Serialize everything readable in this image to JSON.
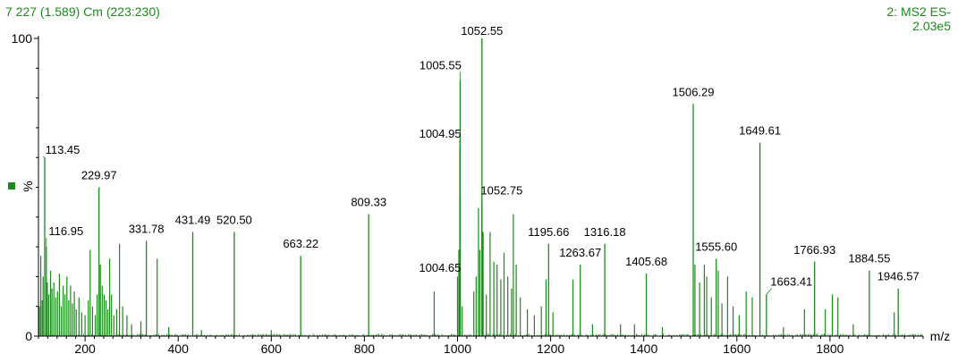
{
  "header": {
    "left": "7 227 (1.589) Cm (223:230)",
    "right_line1": "2: MS2 ES-",
    "right_line2": "2.03e5"
  },
  "colors": {
    "spectrum": "#1a8a1a",
    "axis": "#000000",
    "labels": "#000000"
  },
  "chart_data": {
    "type": "bar",
    "title": "7 227 (1.589) Cm (223:230)",
    "xlabel": "m/z",
    "ylabel": "%",
    "xlim": [
      100,
      2000
    ],
    "ylim": [
      0,
      100
    ],
    "xticks": [
      200,
      400,
      600,
      800,
      1000,
      1200,
      1400,
      1600,
      1800
    ],
    "yticks": [
      0,
      100
    ],
    "grid": false,
    "labeled_peaks": [
      {
        "mz": 113.45,
        "label": "113.45",
        "intensity": 60
      },
      {
        "mz": 116.95,
        "label": "116.95",
        "intensity": 30
      },
      {
        "mz": 229.97,
        "label": "229.97",
        "intensity": 50
      },
      {
        "mz": 331.78,
        "label": "331.78",
        "intensity": 32
      },
      {
        "mz": 431.49,
        "label": "431.49",
        "intensity": 35
      },
      {
        "mz": 520.5,
        "label": "520.50",
        "intensity": 35
      },
      {
        "mz": 663.22,
        "label": "663.22",
        "intensity": 27
      },
      {
        "mz": 809.33,
        "label": "809.33",
        "intensity": 41
      },
      {
        "mz": 1004.65,
        "label": "1004.65",
        "intensity": 18
      },
      {
        "mz": 1004.95,
        "label": "1004.95",
        "intensity": 63
      },
      {
        "mz": 1005.55,
        "label": "1005.55",
        "intensity": 86
      },
      {
        "mz": 1052.55,
        "label": "1052.55",
        "intensity": 100
      },
      {
        "mz": 1052.75,
        "label": "1052.75",
        "intensity": 44
      },
      {
        "mz": 1195.66,
        "label": "1195.66",
        "intensity": 31
      },
      {
        "mz": 1263.67,
        "label": "1263.67",
        "intensity": 24
      },
      {
        "mz": 1316.18,
        "label": "1316.18",
        "intensity": 31
      },
      {
        "mz": 1405.68,
        "label": "1405.68",
        "intensity": 21
      },
      {
        "mz": 1506.29,
        "label": "1506.29",
        "intensity": 78
      },
      {
        "mz": 1555.6,
        "label": "1555.60",
        "intensity": 26
      },
      {
        "mz": 1649.61,
        "label": "1649.61",
        "intensity": 65
      },
      {
        "mz": 1663.41,
        "label": "1663.41",
        "intensity": 14
      },
      {
        "mz": 1766.93,
        "label": "1766.93",
        "intensity": 25
      },
      {
        "mz": 1884.55,
        "label": "1884.55",
        "intensity": 22
      },
      {
        "mz": 1946.57,
        "label": "1946.57",
        "intensity": 16
      }
    ],
    "other_peaks": [
      {
        "mz": 102,
        "intensity": 10
      },
      {
        "mz": 105,
        "intensity": 27
      },
      {
        "mz": 108,
        "intensity": 12
      },
      {
        "mz": 110,
        "intensity": 20
      },
      {
        "mz": 119,
        "intensity": 18
      },
      {
        "mz": 122,
        "intensity": 14
      },
      {
        "mz": 126,
        "intensity": 22
      },
      {
        "mz": 129,
        "intensity": 16
      },
      {
        "mz": 133,
        "intensity": 18
      },
      {
        "mz": 137,
        "intensity": 13
      },
      {
        "mz": 141,
        "intensity": 15
      },
      {
        "mz": 145,
        "intensity": 21
      },
      {
        "mz": 149,
        "intensity": 10
      },
      {
        "mz": 153,
        "intensity": 17
      },
      {
        "mz": 157,
        "intensity": 14
      },
      {
        "mz": 161,
        "intensity": 20
      },
      {
        "mz": 165,
        "intensity": 12
      },
      {
        "mz": 169,
        "intensity": 17
      },
      {
        "mz": 173,
        "intensity": 11
      },
      {
        "mz": 177,
        "intensity": 15
      },
      {
        "mz": 181,
        "intensity": 9
      },
      {
        "mz": 187,
        "intensity": 13
      },
      {
        "mz": 193,
        "intensity": 8
      },
      {
        "mz": 200,
        "intensity": 7
      },
      {
        "mz": 207,
        "intensity": 12
      },
      {
        "mz": 211,
        "intensity": 29
      },
      {
        "mz": 216,
        "intensity": 10
      },
      {
        "mz": 222,
        "intensity": 7
      },
      {
        "mz": 226,
        "intensity": 14
      },
      {
        "mz": 233,
        "intensity": 24
      },
      {
        "mz": 237,
        "intensity": 17
      },
      {
        "mz": 241,
        "intensity": 14
      },
      {
        "mz": 245,
        "intensity": 12
      },
      {
        "mz": 249,
        "intensity": 9
      },
      {
        "mz": 253,
        "intensity": 26
      },
      {
        "mz": 257,
        "intensity": 14
      },
      {
        "mz": 262,
        "intensity": 7
      },
      {
        "mz": 268,
        "intensity": 9
      },
      {
        "mz": 274,
        "intensity": 31
      },
      {
        "mz": 281,
        "intensity": 10
      },
      {
        "mz": 290,
        "intensity": 7
      },
      {
        "mz": 300,
        "intensity": 4
      },
      {
        "mz": 320,
        "intensity": 5
      },
      {
        "mz": 355,
        "intensity": 26
      },
      {
        "mz": 380,
        "intensity": 3
      },
      {
        "mz": 450,
        "intensity": 2
      },
      {
        "mz": 600,
        "intensity": 2
      },
      {
        "mz": 950,
        "intensity": 15
      },
      {
        "mz": 1000,
        "intensity": 20
      },
      {
        "mz": 1003,
        "intensity": 29
      },
      {
        "mz": 1006,
        "intensity": 46
      },
      {
        "mz": 1010,
        "intensity": 10
      },
      {
        "mz": 1035,
        "intensity": 15
      },
      {
        "mz": 1040,
        "intensity": 20
      },
      {
        "mz": 1045,
        "intensity": 43
      },
      {
        "mz": 1048,
        "intensity": 29
      },
      {
        "mz": 1055,
        "intensity": 35
      },
      {
        "mz": 1062,
        "intensity": 14
      },
      {
        "mz": 1070,
        "intensity": 35
      },
      {
        "mz": 1078,
        "intensity": 25
      },
      {
        "mz": 1085,
        "intensity": 24
      },
      {
        "mz": 1093,
        "intensity": 19
      },
      {
        "mz": 1100,
        "intensity": 28
      },
      {
        "mz": 1108,
        "intensity": 20
      },
      {
        "mz": 1116,
        "intensity": 16
      },
      {
        "mz": 1120,
        "intensity": 41
      },
      {
        "mz": 1126,
        "intensity": 24
      },
      {
        "mz": 1135,
        "intensity": 13
      },
      {
        "mz": 1150,
        "intensity": 9
      },
      {
        "mz": 1165,
        "intensity": 7
      },
      {
        "mz": 1180,
        "intensity": 10
      },
      {
        "mz": 1190,
        "intensity": 19
      },
      {
        "mz": 1205,
        "intensity": 8
      },
      {
        "mz": 1248,
        "intensity": 19
      },
      {
        "mz": 1290,
        "intensity": 4
      },
      {
        "mz": 1350,
        "intensity": 4
      },
      {
        "mz": 1380,
        "intensity": 4
      },
      {
        "mz": 1440,
        "intensity": 3
      },
      {
        "mz": 1510,
        "intensity": 24
      },
      {
        "mz": 1520,
        "intensity": 18
      },
      {
        "mz": 1530,
        "intensity": 24
      },
      {
        "mz": 1535,
        "intensity": 20
      },
      {
        "mz": 1545,
        "intensity": 13
      },
      {
        "mz": 1560,
        "intensity": 22
      },
      {
        "mz": 1568,
        "intensity": 11
      },
      {
        "mz": 1580,
        "intensity": 20
      },
      {
        "mz": 1592,
        "intensity": 10
      },
      {
        "mz": 1605,
        "intensity": 7
      },
      {
        "mz": 1620,
        "intensity": 15
      },
      {
        "mz": 1633,
        "intensity": 13
      },
      {
        "mz": 1700,
        "intensity": 3
      },
      {
        "mz": 1745,
        "intensity": 9
      },
      {
        "mz": 1790,
        "intensity": 9
      },
      {
        "mz": 1805,
        "intensity": 14
      },
      {
        "mz": 1817,
        "intensity": 13
      },
      {
        "mz": 1850,
        "intensity": 4
      },
      {
        "mz": 1938,
        "intensity": 8
      }
    ]
  }
}
